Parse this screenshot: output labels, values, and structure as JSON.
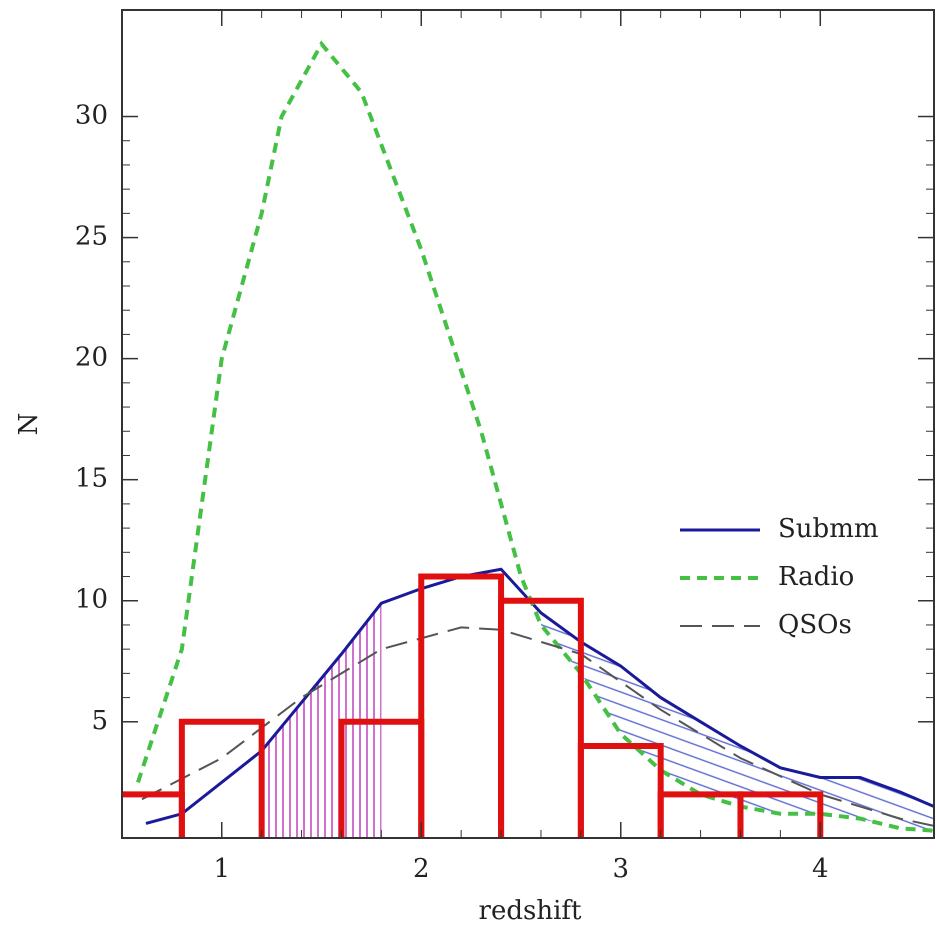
{
  "chart_data": {
    "type": "line",
    "xlabel": "redshift",
    "ylabel": "N",
    "xlim": [
      0.5,
      4.57
    ],
    "ylim": [
      0.2,
      34.4
    ],
    "xticks": [
      1,
      2,
      3,
      4
    ],
    "yticks": [
      5,
      10,
      15,
      20,
      25,
      30
    ],
    "legend": "right",
    "series": [
      {
        "name": "Submm",
        "color": "#1a1a9a",
        "style": "solid",
        "x": [
          0.62,
          0.8,
          1.0,
          1.2,
          1.4,
          1.6,
          1.8,
          2.0,
          2.2,
          2.4,
          2.6,
          2.8,
          3.0,
          3.2,
          3.4,
          3.6,
          3.8,
          4.0,
          4.2,
          4.4,
          4.57
        ],
        "values": [
          0.8,
          1.2,
          2.5,
          3.8,
          5.8,
          7.8,
          9.9,
          10.5,
          11,
          11.3,
          9.5,
          8.3,
          7.3,
          6.0,
          5.0,
          4.0,
          3.1,
          2.7,
          2.7,
          2.1,
          1.5
        ]
      },
      {
        "name": "Radio",
        "color": "#44c044",
        "style": "dashed",
        "x": [
          0.58,
          0.8,
          1.0,
          1.2,
          1.3,
          1.5,
          1.7,
          2.0,
          2.3,
          2.5,
          2.6,
          2.8,
          3.0,
          3.2,
          3.4,
          3.6,
          3.8,
          4.0,
          4.2,
          4.4,
          4.57
        ],
        "values": [
          2.5,
          8,
          20,
          26,
          30,
          33,
          31,
          24.5,
          17,
          11,
          9,
          7,
          4.5,
          3,
          2,
          1.5,
          1.2,
          1.2,
          1.0,
          0.6,
          0.5
        ]
      },
      {
        "name": "QSOs",
        "color": "#555555",
        "style": "longdash",
        "x": [
          0.6,
          1.0,
          1.4,
          1.8,
          2.2,
          2.4,
          2.8,
          3.2,
          3.6,
          4.0,
          4.4,
          4.57
        ],
        "values": [
          1.8,
          3.5,
          6,
          8,
          8.9,
          8.8,
          7.8,
          5.5,
          3.5,
          2,
          1,
          0.7
        ]
      }
    ],
    "histogram": {
      "color": "#e01010",
      "bins": [
        0.4,
        0.8,
        1.2,
        1.6,
        2.0,
        2.4,
        2.8,
        3.2,
        3.6,
        4.0
      ],
      "counts": [
        2,
        5,
        0,
        5,
        11,
        10,
        4,
        2,
        2
      ]
    }
  }
}
